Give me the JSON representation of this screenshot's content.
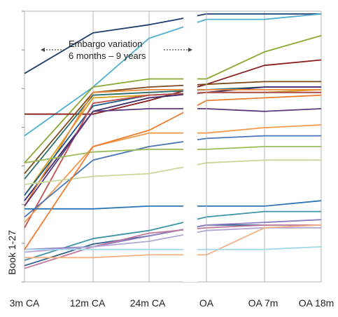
{
  "chart_data": {
    "type": "line",
    "xlabel": "",
    "ylabel": "Book 1-27",
    "categories": [
      "3m CA",
      "12m CA",
      "24m CA",
      "OA",
      "OA 7m",
      "OA 18m"
    ],
    "grid": "vertical",
    "annotation": {
      "line1": "Embargo variation",
      "line2": "6 months – 9 years"
    },
    "series": [
      {
        "color": "#1f3f6e",
        "values": [
          0.77,
          0.92,
          0.95,
          0.99,
          0.99,
          0.99
        ]
      },
      {
        "color": "#4fb0cf",
        "values": [
          0.54,
          0.72,
          0.9,
          0.97,
          0.97,
          0.99
        ]
      },
      {
        "color": "#8aa832",
        "values": [
          0.44,
          0.72,
          0.75,
          0.75,
          0.85,
          0.91
        ]
      },
      {
        "color": "#8b1c1c",
        "values": [
          0.62,
          0.62,
          0.67,
          0.73,
          0.8,
          0.82
        ]
      },
      {
        "color": "#7a4a1a",
        "values": [
          0.4,
          0.7,
          0.72,
          0.73,
          0.74,
          0.74
        ]
      },
      {
        "color": "#2d6e6e",
        "values": [
          0.38,
          0.69,
          0.7,
          0.71,
          0.72,
          0.72
        ]
      },
      {
        "color": "#3c2a6b",
        "values": [
          0.3,
          0.63,
          0.68,
          0.7,
          0.72,
          0.72
        ]
      },
      {
        "color": "#d4a017",
        "values": [
          0.32,
          0.68,
          0.69,
          0.7,
          0.7,
          0.71
        ]
      },
      {
        "color": "#e8873a",
        "values": [
          0.28,
          0.7,
          0.71,
          0.71,
          0.71,
          0.71
        ]
      },
      {
        "color": "#1a5b8c",
        "values": [
          0.32,
          0.65,
          0.69,
          0.7,
          0.7,
          0.7
        ]
      },
      {
        "color": "#c0504d",
        "values": [
          0.2,
          0.66,
          0.69,
          0.7,
          0.7,
          0.7
        ]
      },
      {
        "color": "#5a3a7a",
        "values": [
          0.28,
          0.63,
          0.64,
          0.64,
          0.63,
          0.64
        ]
      },
      {
        "color": "#f49a4c",
        "values": [
          0.22,
          0.5,
          0.55,
          0.55,
          0.57,
          0.58
        ]
      },
      {
        "color": "#4a76b8",
        "values": [
          0.24,
          0.45,
          0.5,
          0.53,
          0.54,
          0.54
        ]
      },
      {
        "color": "#9bbb59",
        "values": [
          0.44,
          0.48,
          0.49,
          0.49,
          0.5,
          0.5
        ]
      },
      {
        "color": "#c8d89a",
        "values": [
          0.36,
          0.39,
          0.4,
          0.44,
          0.45,
          0.45
        ]
      },
      {
        "color": "#2e75b6",
        "values": [
          0.27,
          0.27,
          0.28,
          0.28,
          0.28,
          0.3
        ]
      },
      {
        "color": "#3c96a8",
        "values": [
          0.08,
          0.16,
          0.19,
          0.24,
          0.26,
          0.26
        ]
      },
      {
        "color": "#2e5e8c",
        "values": [
          0.06,
          0.14,
          0.17,
          0.21,
          0.21,
          0.21
        ]
      },
      {
        "color": "#8e7cc3",
        "values": [
          0.12,
          0.13,
          0.17,
          0.21,
          0.22,
          0.23
        ]
      },
      {
        "color": "#c27ba0",
        "values": [
          0.05,
          0.13,
          0.18,
          0.2,
          0.21,
          0.21
        ]
      },
      {
        "color": "#b4a7d6",
        "values": [
          0.11,
          0.13,
          0.15,
          0.19,
          0.2,
          0.2
        ]
      },
      {
        "color": "#f4b183",
        "values": [
          0.09,
          0.09,
          0.1,
          0.1,
          0.2,
          0.21
        ]
      },
      {
        "color": "#a6d8e8",
        "values": [
          0.12,
          0.12,
          0.12,
          0.12,
          0.12,
          0.13
        ]
      },
      {
        "color": "#ed7d31",
        "values": [
          0.12,
          0.5,
          0.56,
          0.67,
          0.68,
          0.69
        ]
      }
    ]
  }
}
